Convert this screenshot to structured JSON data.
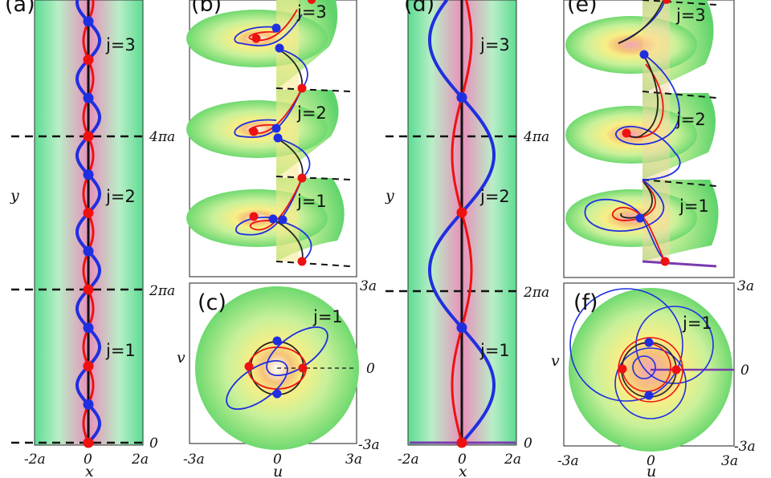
{
  "figure": {
    "panels": {
      "a": {
        "letter": "(a)",
        "labels": [
          "j=3",
          "j=2",
          "j=1"
        ]
      },
      "b": {
        "letter": "(b)",
        "labels": [
          "j=3",
          "j=2",
          "j=1"
        ]
      },
      "c": {
        "letter": "(c)",
        "labels": [
          "j=1"
        ]
      },
      "d": {
        "letter": "(d)",
        "labels": [
          "j=3",
          "j=2",
          "j=1"
        ]
      },
      "e": {
        "letter": "(e)",
        "labels": [
          "j=3",
          "j=2",
          "j=1"
        ]
      },
      "f": {
        "letter": "(f)",
        "labels": [
          "j=1"
        ]
      }
    },
    "y_ticks": [
      "4πa",
      "2πa",
      "0"
    ],
    "x_ticks": [
      "-2a",
      "0",
      "2a"
    ],
    "uv_ticks": {
      "v": [
        "3a",
        "0",
        "-3a"
      ],
      "u": [
        "-3a",
        "0",
        "3a"
      ]
    },
    "axis_labels": {
      "x": "x",
      "y": "y",
      "u": "u",
      "v": "v"
    }
  },
  "colors": {
    "blue": "#1f2fe0",
    "red": "#ee1111",
    "black": "#111111",
    "green": "#5ad85a",
    "pink": "#e98cb8",
    "yellow": "#f8f08a",
    "purple": "#7a3ab0"
  }
}
